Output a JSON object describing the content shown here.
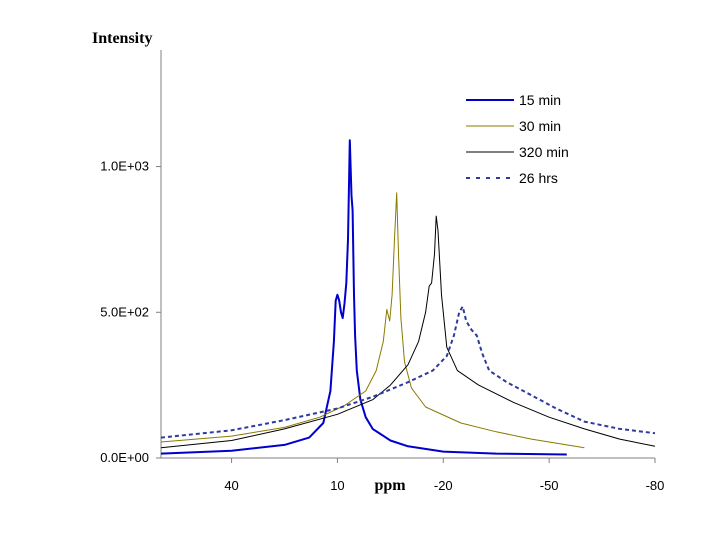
{
  "chart_data": {
    "type": "line",
    "title": "",
    "xlabel": "ppm",
    "ylabel": "Intensity",
    "x_reversed": true,
    "xlim": [
      60,
      -80
    ],
    "ylim": [
      0,
      1400
    ],
    "xticks": [
      40,
      10,
      -20,
      -50,
      -80
    ],
    "xtick_labels": [
      "40",
      "10",
      "-20",
      "-50",
      "-80"
    ],
    "yticks": [
      0,
      500,
      1000
    ],
    "ytick_labels": [
      "0.0E+00",
      "5.0E+02",
      "1.0E+03"
    ],
    "grid": false,
    "legend_position": "top-right",
    "series": [
      {
        "name": "15 min",
        "color": "#0000CC",
        "style": "solid",
        "width": 2,
        "points": [
          [
            60,
            15
          ],
          [
            40,
            25
          ],
          [
            25,
            45
          ],
          [
            18,
            70
          ],
          [
            14,
            120
          ],
          [
            12,
            230
          ],
          [
            11,
            400
          ],
          [
            10.5,
            540
          ],
          [
            10,
            560
          ],
          [
            9.5,
            540
          ],
          [
            9,
            500
          ],
          [
            8.5,
            480
          ],
          [
            8,
            530
          ],
          [
            7.5,
            600
          ],
          [
            7,
            750
          ],
          [
            6.5,
            1090
          ],
          [
            6,
            900
          ],
          [
            5.7,
            850
          ],
          [
            5.3,
            560
          ],
          [
            5,
            420
          ],
          [
            4.5,
            300
          ],
          [
            3.5,
            200
          ],
          [
            2,
            140
          ],
          [
            0,
            100
          ],
          [
            -5,
            60
          ],
          [
            -10,
            40
          ],
          [
            -20,
            22
          ],
          [
            -35,
            15
          ],
          [
            -55,
            12
          ]
        ]
      },
      {
        "name": "30 min",
        "color": "#8B7A00",
        "style": "solid",
        "width": 1,
        "points": [
          [
            60,
            55
          ],
          [
            40,
            75
          ],
          [
            25,
            105
          ],
          [
            15,
            140
          ],
          [
            8,
            180
          ],
          [
            2,
            230
          ],
          [
            -1,
            300
          ],
          [
            -3,
            400
          ],
          [
            -4,
            510
          ],
          [
            -4.8,
            470
          ],
          [
            -5.5,
            560
          ],
          [
            -6.2,
            760
          ],
          [
            -6.8,
            910
          ],
          [
            -7.3,
            700
          ],
          [
            -8,
            480
          ],
          [
            -9,
            330
          ],
          [
            -11,
            240
          ],
          [
            -15,
            175
          ],
          [
            -25,
            120
          ],
          [
            -35,
            90
          ],
          [
            -45,
            65
          ],
          [
            -55,
            45
          ],
          [
            -60,
            35
          ]
        ]
      },
      {
        "name": "320 min",
        "color": "#000000",
        "style": "solid",
        "width": 1,
        "points": [
          [
            60,
            35
          ],
          [
            40,
            60
          ],
          [
            25,
            100
          ],
          [
            10,
            150
          ],
          [
            0,
            200
          ],
          [
            -5,
            250
          ],
          [
            -10,
            320
          ],
          [
            -13,
            400
          ],
          [
            -15,
            500
          ],
          [
            -16,
            590
          ],
          [
            -16.7,
            600
          ],
          [
            -17.5,
            700
          ],
          [
            -18,
            830
          ],
          [
            -18.5,
            780
          ],
          [
            -19.5,
            560
          ],
          [
            -21,
            380
          ],
          [
            -24,
            300
          ],
          [
            -30,
            250
          ],
          [
            -40,
            190
          ],
          [
            -50,
            140
          ],
          [
            -60,
            100
          ],
          [
            -70,
            65
          ],
          [
            -80,
            40
          ]
        ]
      },
      {
        "name": "26 hrs",
        "color": "#2E3A9E",
        "style": "dashed",
        "width": 2,
        "points": [
          [
            60,
            70
          ],
          [
            40,
            95
          ],
          [
            25,
            130
          ],
          [
            10,
            170
          ],
          [
            0,
            210
          ],
          [
            -10,
            260
          ],
          [
            -17,
            300
          ],
          [
            -21,
            350
          ],
          [
            -23,
            420
          ],
          [
            -24.5,
            500
          ],
          [
            -25.5,
            520
          ],
          [
            -26.5,
            470
          ],
          [
            -28,
            440
          ],
          [
            -29.5,
            420
          ],
          [
            -31,
            360
          ],
          [
            -33,
            300
          ],
          [
            -38,
            260
          ],
          [
            -45,
            215
          ],
          [
            -52,
            170
          ],
          [
            -60,
            125
          ],
          [
            -70,
            100
          ],
          [
            -80,
            85
          ]
        ]
      }
    ]
  }
}
